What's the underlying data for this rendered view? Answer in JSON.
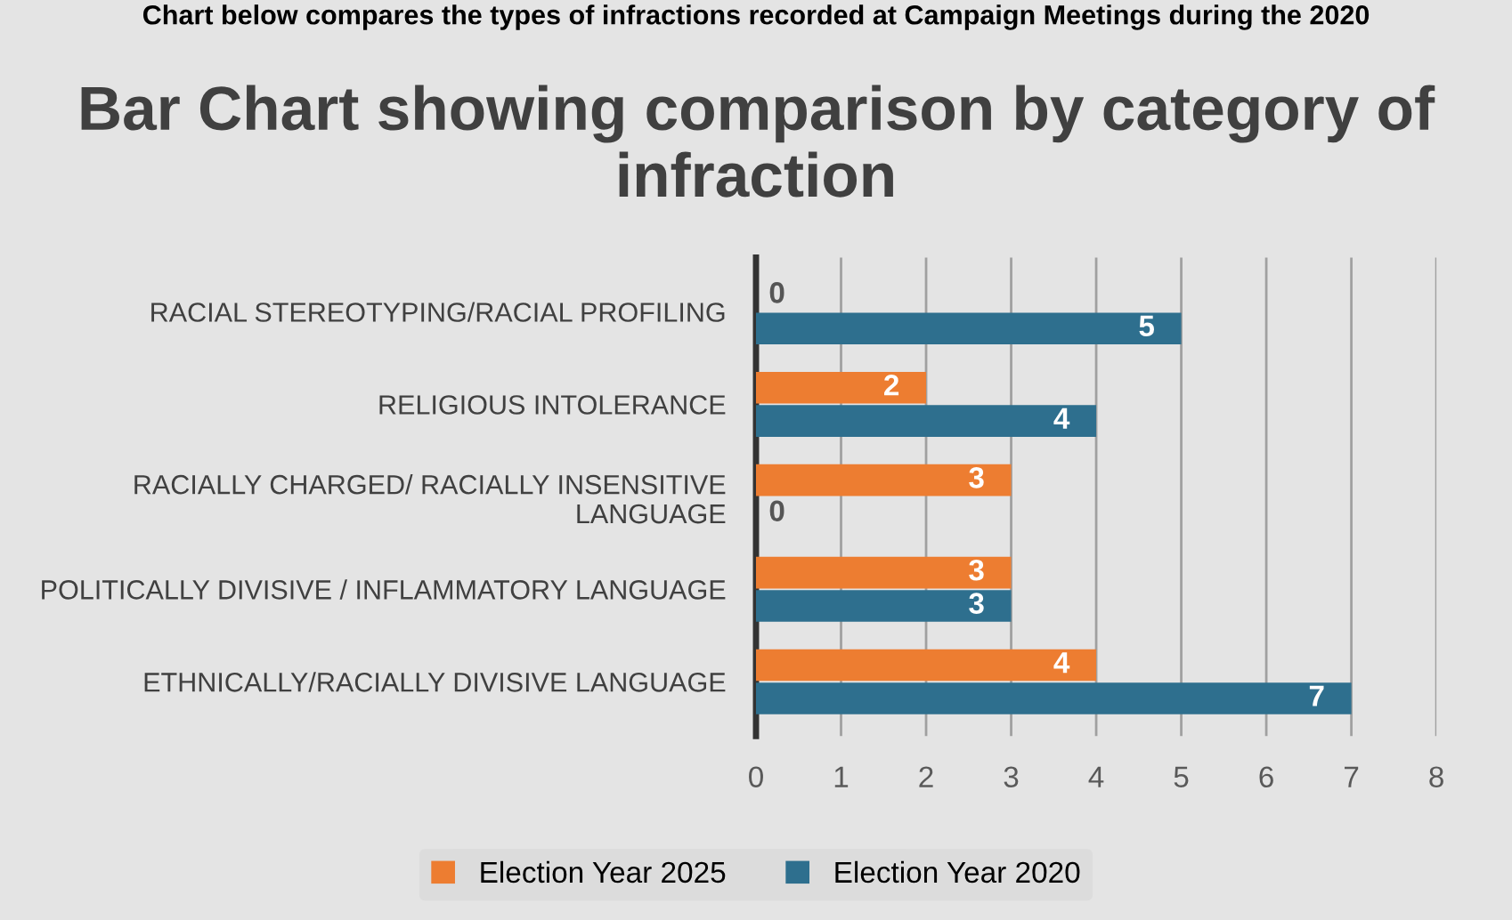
{
  "chart_data": {
    "type": "bar",
    "orientation": "horizontal",
    "title": "Bar Chart showing comparison by category of infraction",
    "annotations": [
      "Chart below compares the types of infractions recorded at Campaign Meetings during the 2020"
    ],
    "categories": [
      "RACIAL STEREOTYPING/RACIAL PROFILING",
      "RELIGIOUS INTOLERANCE",
      "RACIALLY CHARGED/ RACIALLY INSENSITIVE LANGUAGE",
      "POLITICALLY DIVISIVE / INFLAMMATORY LANGUAGE",
      "ETHNICALLY/RACIALLY DIVISIVE LANGUAGE"
    ],
    "series": [
      {
        "name": "Election Year 2025",
        "color": "#ed7d31",
        "values": [
          0,
          2,
          3,
          3,
          4
        ]
      },
      {
        "name": "Election Year 2020",
        "color": "#2e6f8e",
        "values": [
          5,
          4,
          0,
          3,
          7
        ]
      }
    ],
    "xlim": [
      0,
      8
    ],
    "xticks": [
      0,
      1,
      2,
      3,
      4,
      5,
      6,
      7,
      8
    ],
    "grid": "x",
    "legend": "bottom",
    "data_labels": true
  }
}
